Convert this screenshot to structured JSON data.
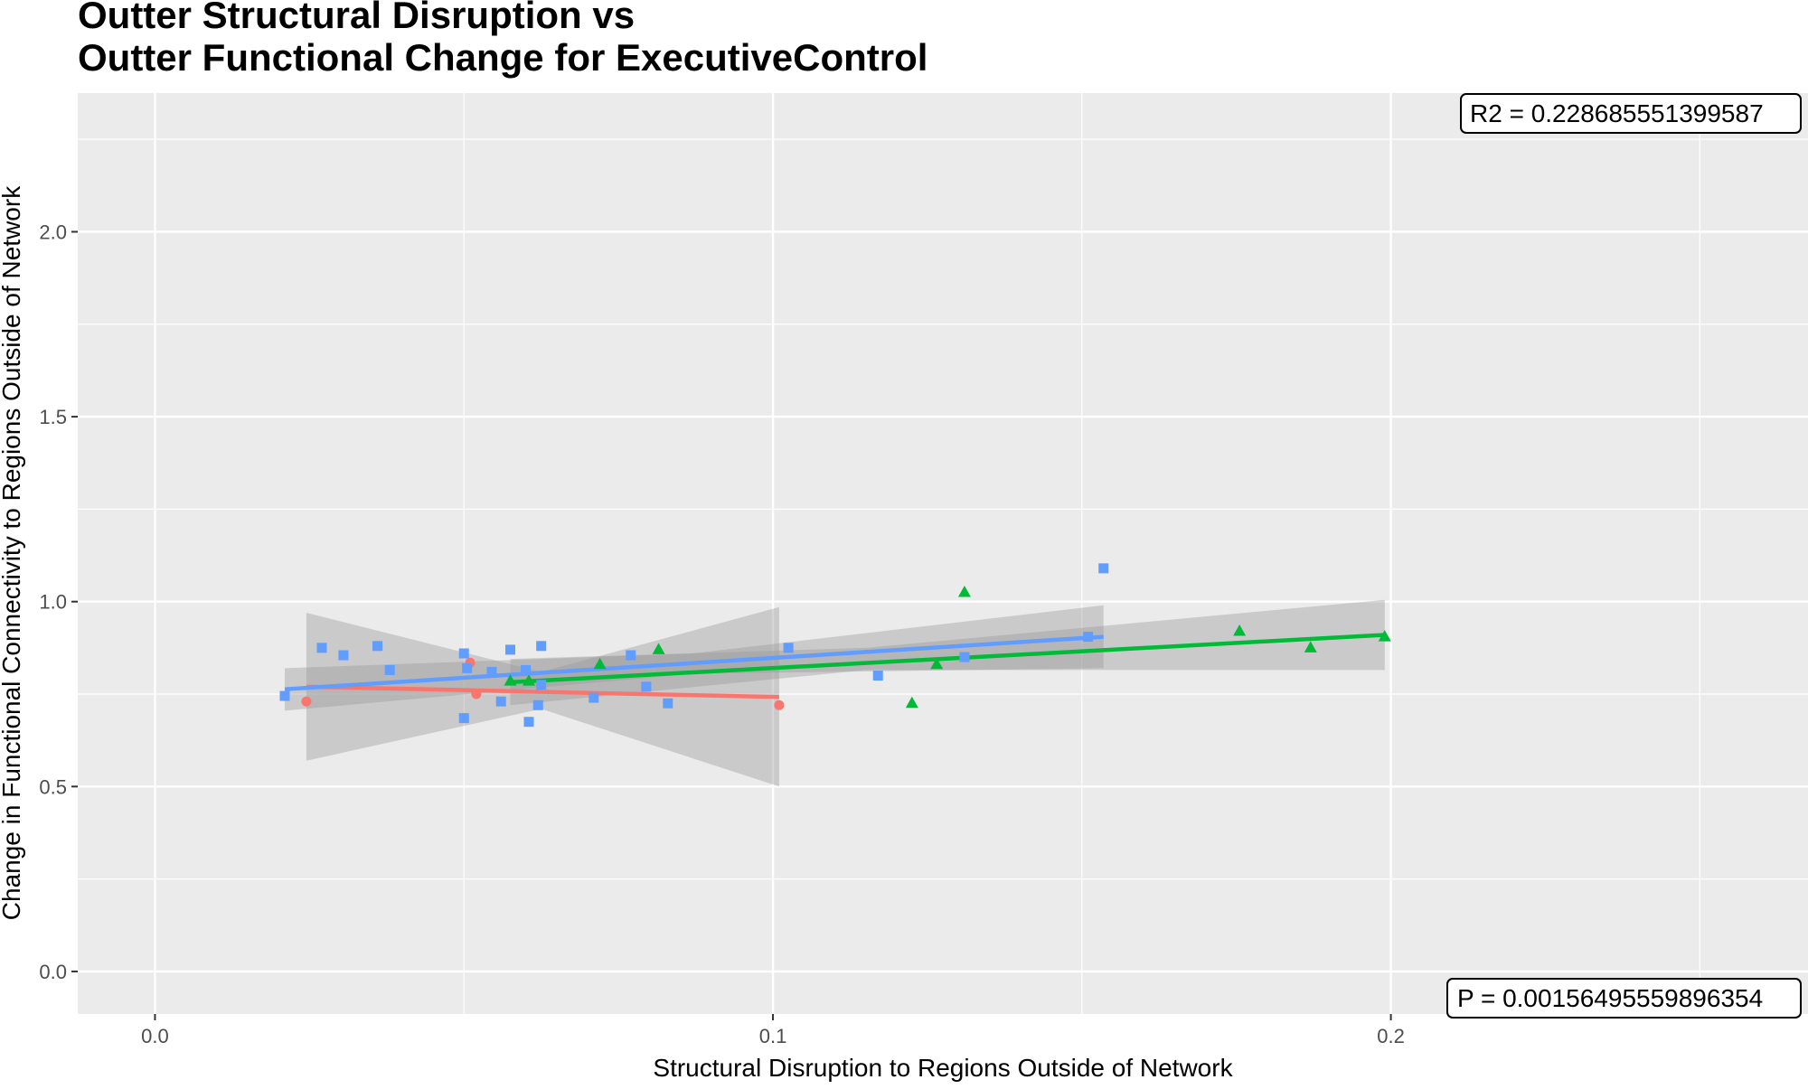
{
  "title_lines": [
    "Outter Structural Disruption vs",
    "Outter Functional Change for ExecutiveControl"
  ],
  "annotations": {
    "r2": "R2 =  0.228685551399587",
    "p": "P =  0.00156495559896354"
  },
  "colors": {
    "panel_background": "#ebebeb",
    "grid": "#ffffff",
    "ribbon": "#999999",
    "tick_text": "#4d4d4d"
  },
  "chart_data": {
    "type": "scatter",
    "title": "Outter Structural Disruption vs Outter Functional Change for ExecutiveControl",
    "xlabel": "Structural Disruption to Regions Outside of Network",
    "ylabel": "Change in Functional Connectivity to Regions Outside of Network",
    "xlim": [
      -0.0125,
      0.2675
    ],
    "ylim": [
      -0.115,
      2.375
    ],
    "x_ticks": [
      0.0,
      0.1,
      0.2
    ],
    "x_tick_labels": [
      "0.0",
      "0.1",
      "0.2"
    ],
    "y_ticks": [
      0.0,
      0.5,
      1.0,
      1.5,
      2.0
    ],
    "y_tick_labels": [
      "0.0",
      "0.5",
      "1.0",
      "1.5",
      "2.0"
    ],
    "grid": true,
    "legend": "none",
    "series": [
      {
        "color": "#f8766d",
        "shape": "circle",
        "points": [
          {
            "x": 0.0245,
            "y": 0.73
          },
          {
            "x": 0.051,
            "y": 0.835
          },
          {
            "x": 0.052,
            "y": 0.75
          },
          {
            "x": 0.101,
            "y": 0.72
          }
        ],
        "fit": {
          "x": [
            0.0245,
            0.101
          ],
          "y": [
            0.77,
            0.742
          ]
        },
        "ribbon": {
          "x": [
            0.0245,
            0.0625,
            0.101
          ],
          "lower": [
            0.57,
            0.71,
            0.5
          ],
          "upper": [
            0.97,
            0.81,
            0.985
          ]
        }
      },
      {
        "color": "#00ba38",
        "shape": "triangle",
        "points": [
          {
            "x": 0.0575,
            "y": 0.785
          },
          {
            "x": 0.0605,
            "y": 0.785
          },
          {
            "x": 0.072,
            "y": 0.83
          },
          {
            "x": 0.0815,
            "y": 0.87
          },
          {
            "x": 0.1225,
            "y": 0.725
          },
          {
            "x": 0.1265,
            "y": 0.83
          },
          {
            "x": 0.131,
            "y": 1.025
          },
          {
            "x": 0.1755,
            "y": 0.92
          },
          {
            "x": 0.187,
            "y": 0.875
          },
          {
            "x": 0.199,
            "y": 0.905
          }
        ],
        "fit": {
          "x": [
            0.0575,
            0.199
          ],
          "y": [
            0.782,
            0.91
          ]
        },
        "ribbon": {
          "x": [
            0.0575,
            0.115,
            0.199
          ],
          "lower": [
            0.72,
            0.815,
            0.815
          ],
          "upper": [
            0.845,
            0.875,
            1.005
          ]
        }
      },
      {
        "color": "#619cff",
        "shape": "square",
        "points": [
          {
            "x": 0.021,
            "y": 0.745
          },
          {
            "x": 0.027,
            "y": 0.875
          },
          {
            "x": 0.0305,
            "y": 0.855
          },
          {
            "x": 0.036,
            "y": 0.88
          },
          {
            "x": 0.038,
            "y": 0.815
          },
          {
            "x": 0.05,
            "y": 0.86
          },
          {
            "x": 0.05,
            "y": 0.685
          },
          {
            "x": 0.0505,
            "y": 0.82
          },
          {
            "x": 0.0545,
            "y": 0.81
          },
          {
            "x": 0.056,
            "y": 0.73
          },
          {
            "x": 0.0575,
            "y": 0.87
          },
          {
            "x": 0.06,
            "y": 0.815
          },
          {
            "x": 0.0605,
            "y": 0.675
          },
          {
            "x": 0.062,
            "y": 0.72
          },
          {
            "x": 0.0625,
            "y": 0.775
          },
          {
            "x": 0.0625,
            "y": 0.88
          },
          {
            "x": 0.071,
            "y": 0.74
          },
          {
            "x": 0.077,
            "y": 0.855
          },
          {
            "x": 0.0795,
            "y": 0.77
          },
          {
            "x": 0.083,
            "y": 0.725
          },
          {
            "x": 0.1025,
            "y": 0.875
          },
          {
            "x": 0.117,
            "y": 0.8
          },
          {
            "x": 0.131,
            "y": 0.85
          },
          {
            "x": 0.151,
            "y": 0.905
          },
          {
            "x": 0.1535,
            "y": 1.09
          }
        ],
        "fit": {
          "x": [
            0.021,
            0.1535
          ],
          "y": [
            0.763,
            0.905
          ]
        },
        "ribbon": {
          "x": [
            0.021,
            0.087,
            0.1535
          ],
          "lower": [
            0.705,
            0.805,
            0.82
          ],
          "upper": [
            0.82,
            0.86,
            0.99
          ]
        }
      }
    ]
  }
}
